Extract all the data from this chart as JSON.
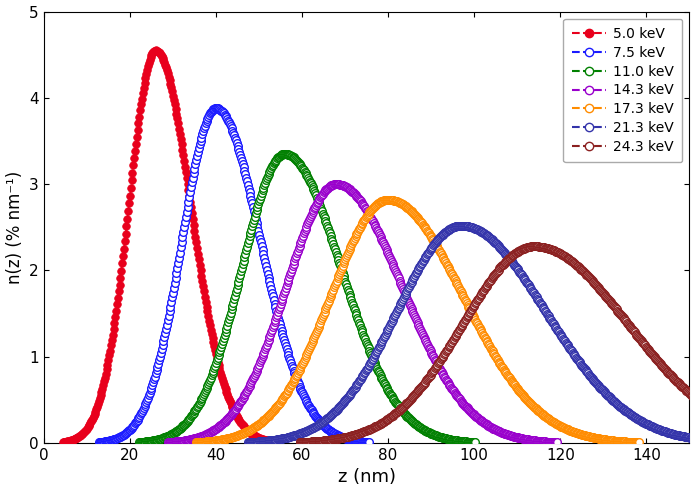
{
  "series": [
    {
      "label": "5.0 keV",
      "color": "#e8001c",
      "filled": true,
      "mean": 26,
      "sigma": 7.5,
      "skew": 1.5,
      "peak": 4.55
    },
    {
      "label": "7.5 keV",
      "color": "#1a1aff",
      "filled": false,
      "mean": 40,
      "sigma": 9.5,
      "skew": 1.5,
      "peak": 3.88
    },
    {
      "label": "11.0 keV",
      "color": "#008000",
      "filled": false,
      "mean": 56,
      "sigma": 12,
      "skew": 1.5,
      "peak": 3.35
    },
    {
      "label": "14.3 keV",
      "color": "#9900cc",
      "filled": false,
      "mean": 68,
      "sigma": 14,
      "skew": 1.5,
      "peak": 3.0
    },
    {
      "label": "17.3 keV",
      "color": "#ff8c00",
      "filled": false,
      "mean": 80,
      "sigma": 16,
      "skew": 1.5,
      "peak": 2.82
    },
    {
      "label": "21.3 keV",
      "color": "#3333aa",
      "filled": false,
      "mean": 97,
      "sigma": 18,
      "skew": 1.5,
      "peak": 2.52
    },
    {
      "label": "24.3 keV",
      "color": "#8b2020",
      "filled": false,
      "mean": 114,
      "sigma": 20,
      "skew": 1.5,
      "peak": 2.28
    }
  ],
  "xlabel": "z (nm)",
  "ylabel": "n(z) (% nm⁻¹)",
  "xlim": [
    0,
    150
  ],
  "ylim": [
    0,
    5
  ],
  "yticks": [
    0,
    1,
    2,
    3,
    4,
    5
  ],
  "xticks": [
    0,
    20,
    40,
    60,
    80,
    100,
    120,
    140
  ],
  "marker_size": 5.5,
  "marker_every": 2,
  "line_width": 1.0,
  "figsize": [
    6.95,
    4.92
  ],
  "dpi": 100
}
